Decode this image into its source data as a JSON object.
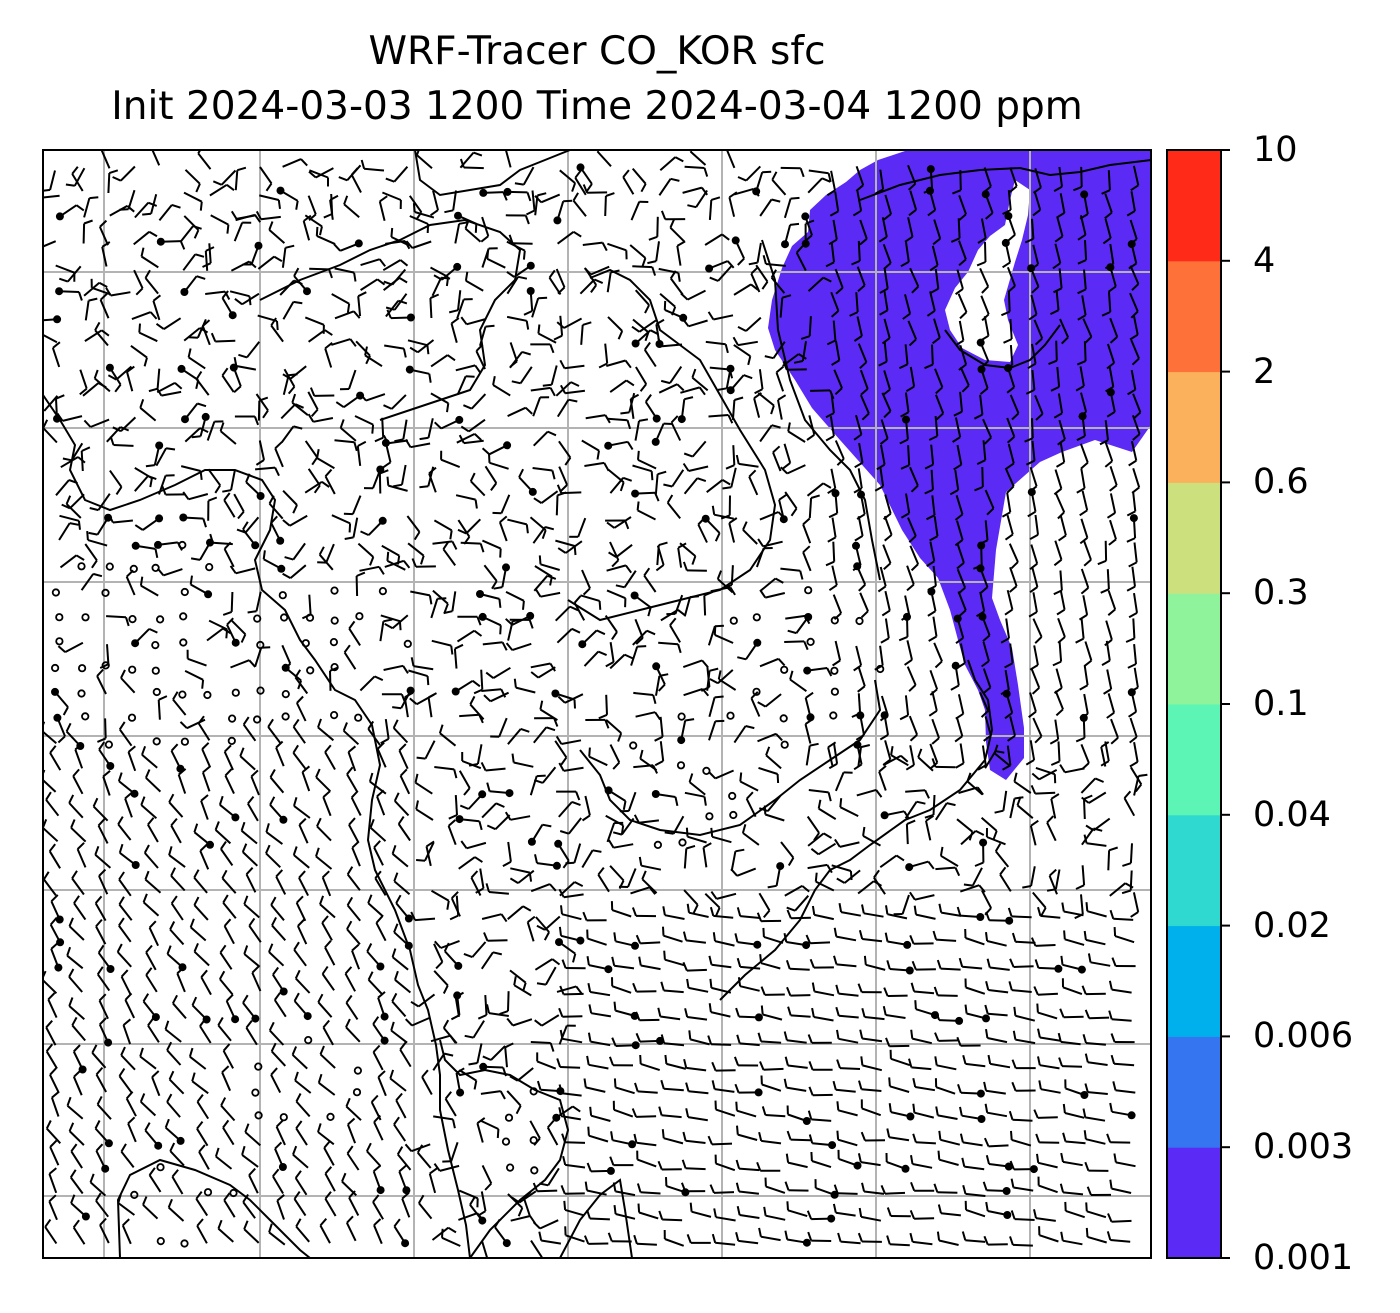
{
  "title": {
    "line1": "WRF-Tracer CO_KOR sfc",
    "line2": "Init 2024-03-03 1200 Time 2024-03-04 1200 ppm"
  },
  "colorbar": {
    "ticks": [
      "0.001",
      "0.003",
      "0.006",
      "0.02",
      "0.04",
      "0.1",
      "0.3",
      "0.6",
      "2",
      "4",
      "10"
    ],
    "colors": [
      "#5b2bf5",
      "#3575f0",
      "#00b0ec",
      "#2fd9d0",
      "#5cf5b5",
      "#8ef39a",
      "#cde07e",
      "#fbb15c",
      "#fe723a",
      "#ff2a17"
    ]
  },
  "map": {
    "plume_color": "#5b2bf5",
    "grid_color": "#b3b3b3",
    "overlay": "wind barbs",
    "coastline_color": "#000000"
  }
}
